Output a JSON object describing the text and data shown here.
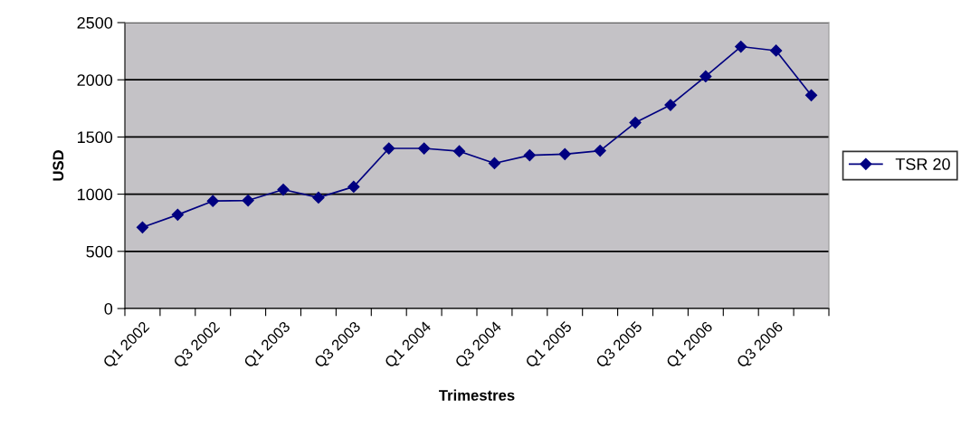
{
  "chart_data": {
    "type": "line",
    "xlabel": "Trimestres",
    "ylabel": "USD",
    "categories": [
      "Q1 2002",
      null,
      "Q3 2002",
      null,
      "Q1 2003",
      null,
      "Q3 2003",
      null,
      "Q1 2004",
      null,
      "Q3 2004",
      null,
      "Q1 2005",
      null,
      "Q3 2005",
      null,
      "Q1 2006",
      null,
      "Q3 2006",
      null
    ],
    "series": [
      {
        "name": "TSR 20",
        "color": "#000080",
        "values": [
          710,
          820,
          940,
          945,
          1040,
          970,
          1065,
          1400,
          1400,
          1375,
          1270,
          1340,
          1350,
          1380,
          1625,
          1780,
          2030,
          2290,
          2255,
          1865
        ]
      }
    ],
    "ylim": [
      0,
      2500
    ],
    "yticks": [
      0,
      500,
      1000,
      1500,
      2000,
      2500
    ],
    "grid": "y",
    "legend": "right",
    "marker": "diamond",
    "line_style": "solid"
  }
}
